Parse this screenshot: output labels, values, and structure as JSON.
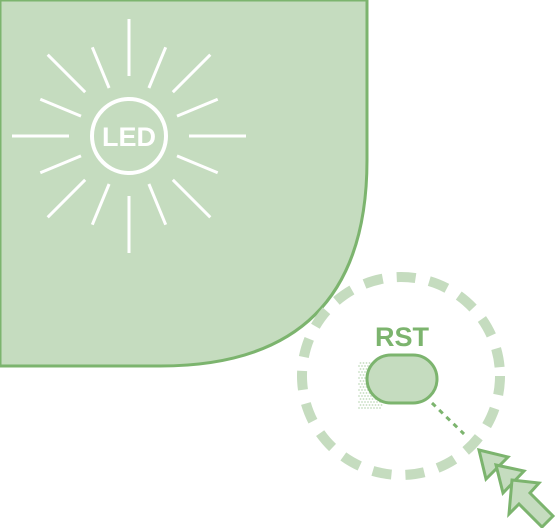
{
  "led": {
    "label": "LED"
  },
  "reset": {
    "label": "RST"
  },
  "colors": {
    "panel_fill": "#c5dcbf",
    "panel_border": "#7cb46e",
    "ray": "#ffffff",
    "button_fill": "#c5dcbf",
    "dashed_ring": "#c5dcbf",
    "arrow_fill": "#c5dcbf",
    "arrow_stroke": "#7cb46e"
  },
  "icons": {
    "led": "light-burst-icon",
    "pointer": "double-arrow-cursor-icon"
  }
}
